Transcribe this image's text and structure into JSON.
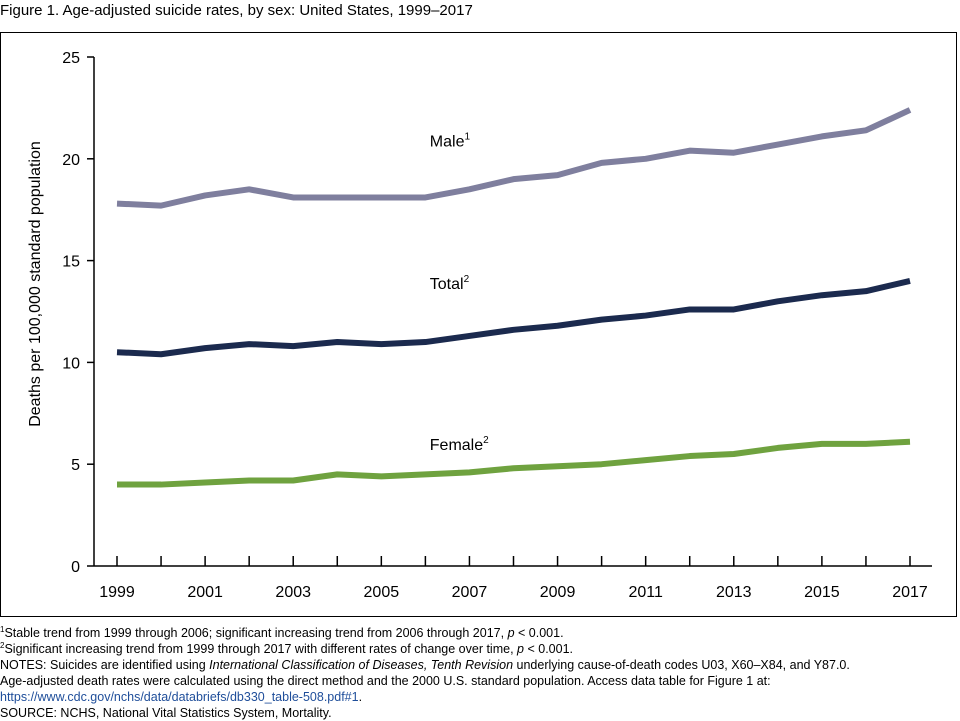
{
  "figure_title": "Figure 1. Age-adjusted suicide rates, by sex: United States, 1999–2017",
  "footnotes": {
    "note1_marker": "1",
    "note1_text": "Stable trend from 1999 through 2006; significant increasing trend from 2006 through 2017,",
    "note1_p": "p",
    "note1_tail": "< 0.001.",
    "note2_marker": "2",
    "note2_text": "Significant increasing trend from 1999 through 2017 with different rates of change over time,",
    "note2_p": "p",
    "note2_tail": "< 0.001.",
    "notes_prefix": "NOTES: Suicides are identified using",
    "notes_icd": "International Classification of Diseases, Tenth Revision",
    "notes_suffix": "underlying cause-of-death codes U03, X60–X84, and Y87.0.",
    "method_line": "Age-adjusted death rates were calculated using the direct method and the 2000 U.S. standard population. Access data table for Figure 1 at:",
    "data_table_url": "https://www.cdc.gov/nchs/data/databriefs/db330_table-508.pdf#1",
    "url_trailing": ".",
    "source": "SOURCE: NCHS, National Vital Statistics System, Mortality."
  },
  "chart_data": {
    "type": "line",
    "title": "",
    "xlabel": "",
    "ylabel": "Deaths per 100,000 standard population",
    "xlim": [
      1999,
      2017
    ],
    "ylim": [
      0,
      25
    ],
    "yticks": [
      0,
      5,
      10,
      15,
      20,
      25
    ],
    "xtick_labels": [
      "1999",
      "2001",
      "2003",
      "2005",
      "2007",
      "2009",
      "2011",
      "2013",
      "2015",
      "2017"
    ],
    "xticks_minor_every": 1,
    "grid": false,
    "legend": "inline labels",
    "x": [
      1999,
      2000,
      2001,
      2002,
      2003,
      2004,
      2005,
      2006,
      2007,
      2008,
      2009,
      2010,
      2011,
      2012,
      2013,
      2014,
      2015,
      2016,
      2017
    ],
    "series": [
      {
        "name": "Male",
        "superscript": "1",
        "color": "#7f7f9e",
        "label_at": [
          2006.1,
          20.6
        ],
        "values": [
          17.8,
          17.7,
          18.2,
          18.5,
          18.1,
          18.1,
          18.1,
          18.1,
          18.5,
          19.0,
          19.2,
          19.8,
          20.0,
          20.4,
          20.3,
          20.7,
          21.1,
          21.4,
          22.4
        ]
      },
      {
        "name": "Total",
        "superscript": "2",
        "color": "#1b2a4e",
        "label_at": [
          2006.1,
          13.6
        ],
        "values": [
          10.5,
          10.4,
          10.7,
          10.9,
          10.8,
          11.0,
          10.9,
          11.0,
          11.3,
          11.6,
          11.8,
          12.1,
          12.3,
          12.6,
          12.6,
          13.0,
          13.3,
          13.5,
          14.0
        ]
      },
      {
        "name": "Female",
        "superscript": "2",
        "color": "#6fa23f",
        "label_at": [
          2006.1,
          5.7
        ],
        "values": [
          4.0,
          4.0,
          4.1,
          4.2,
          4.2,
          4.5,
          4.4,
          4.5,
          4.6,
          4.8,
          4.9,
          5.0,
          5.2,
          5.4,
          5.5,
          5.8,
          6.0,
          6.0,
          6.1
        ]
      }
    ]
  }
}
